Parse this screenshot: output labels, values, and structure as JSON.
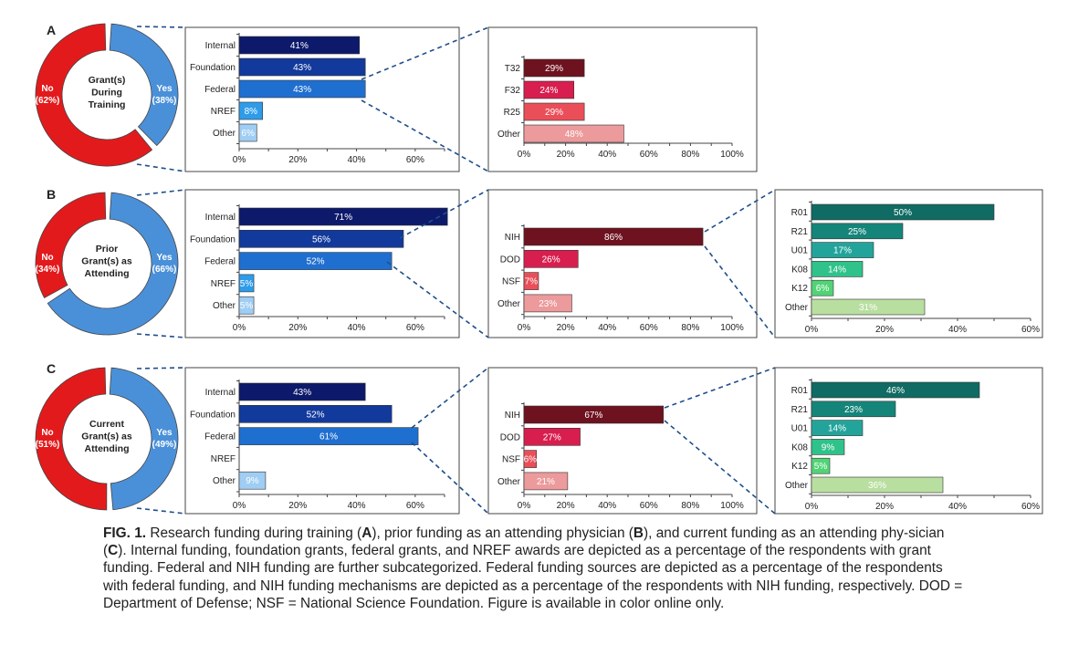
{
  "colors": {
    "donut_no": "#e31a1c",
    "donut_yes": "#4a90d9",
    "blue": [
      "#0d1a6b",
      "#12399c",
      "#1f6fd0",
      "#2f9cea",
      "#9fcdf3"
    ],
    "red": [
      "#6e1220",
      "#d81e4e",
      "#ea4f59",
      "#ec9a9b"
    ],
    "teal": [
      "#0f6b63",
      "#15857a",
      "#23a49b",
      "#2fc28a",
      "#52d376",
      "#b9dfa0"
    ],
    "dash": "#1f4e8c"
  },
  "chart_data": [
    {
      "panel": "A",
      "type": "pie",
      "title": "Grant(s) During Training",
      "title_lines": [
        "Grant(s)",
        "During",
        "Training"
      ],
      "slices": [
        {
          "name": "No",
          "label": "(62%)",
          "value": 62
        },
        {
          "name": "Yes",
          "label": "(38%)",
          "value": 38
        }
      ]
    },
    {
      "panel": "A",
      "type": "bar",
      "orientation": "horizontal",
      "categories": [
        "Internal",
        "Foundation",
        "Federal",
        "NREF",
        "Other"
      ],
      "values": [
        41,
        43,
        43,
        8,
        6
      ],
      "value_labels": [
        "41%",
        "43%",
        "43%",
        "8%",
        "6%"
      ],
      "xlim": [
        0,
        70
      ],
      "xticks": [
        "0%",
        "20%",
        "40%",
        "60%"
      ]
    },
    {
      "panel": "A",
      "type": "bar",
      "orientation": "horizontal",
      "categories": [
        "T32",
        "F32",
        "R25",
        "Other"
      ],
      "values": [
        29,
        24,
        29,
        48
      ],
      "value_labels": [
        "29%",
        "24%",
        "29%",
        "48%"
      ],
      "xlim": [
        0,
        100
      ],
      "xticks": [
        "0%",
        "20%",
        "40%",
        "60%",
        "80%",
        "100%"
      ]
    },
    {
      "panel": "B",
      "type": "pie",
      "title": "Prior Grant(s) as Attending",
      "title_lines": [
        "Prior",
        "Grant(s) as",
        "Attending"
      ],
      "slices": [
        {
          "name": "No",
          "label": "(34%)",
          "value": 34
        },
        {
          "name": "Yes",
          "label": "(66%)",
          "value": 66
        }
      ]
    },
    {
      "panel": "B",
      "type": "bar",
      "orientation": "horizontal",
      "categories": [
        "Internal",
        "Foundation",
        "Federal",
        "NREF",
        "Other"
      ],
      "values": [
        71,
        56,
        52,
        5,
        5
      ],
      "value_labels": [
        "71%",
        "56%",
        "52%",
        "5%",
        "5%"
      ],
      "xlim": [
        0,
        70
      ],
      "xticks": [
        "0%",
        "20%",
        "40%",
        "60%"
      ]
    },
    {
      "panel": "B",
      "type": "bar",
      "orientation": "horizontal",
      "categories": [
        "NIH",
        "DOD",
        "NSF",
        "Other"
      ],
      "values": [
        86,
        26,
        7,
        23
      ],
      "value_labels": [
        "86%",
        "26%",
        "7%",
        "23%"
      ],
      "xlim": [
        0,
        100
      ],
      "xticks": [
        "0%",
        "20%",
        "40%",
        "60%",
        "80%",
        "100%"
      ]
    },
    {
      "panel": "B",
      "type": "bar",
      "orientation": "horizontal",
      "categories": [
        "R01",
        "R21",
        "U01",
        "K08",
        "K12",
        "Other"
      ],
      "values": [
        50,
        25,
        17,
        14,
        6,
        31
      ],
      "value_labels": [
        "50%",
        "25%",
        "17%",
        "14%",
        "6%",
        "31%"
      ],
      "xlim": [
        0,
        60
      ],
      "xticks": [
        "0%",
        "20%",
        "40%",
        "60%"
      ]
    },
    {
      "panel": "C",
      "type": "pie",
      "title": "Current Grant(s) as Attending",
      "title_lines": [
        "Current",
        "Grant(s) as",
        "Attending"
      ],
      "slices": [
        {
          "name": "No",
          "label": "(51%)",
          "value": 51
        },
        {
          "name": "Yes",
          "label": "(49%)",
          "value": 49
        }
      ]
    },
    {
      "panel": "C",
      "type": "bar",
      "orientation": "horizontal",
      "categories": [
        "Internal",
        "Foundation",
        "Federal",
        "NREF",
        "Other"
      ],
      "values": [
        43,
        52,
        61,
        0,
        9
      ],
      "value_labels": [
        "43%",
        "52%",
        "61%",
        "",
        "9%"
      ],
      "xlim": [
        0,
        70
      ],
      "xticks": [
        "0%",
        "20%",
        "40%",
        "60%"
      ]
    },
    {
      "panel": "C",
      "type": "bar",
      "orientation": "horizontal",
      "categories": [
        "NIH",
        "DOD",
        "NSF",
        "Other"
      ],
      "values": [
        67,
        27,
        6,
        21
      ],
      "value_labels": [
        "67%",
        "27%",
        "6%",
        "21%"
      ],
      "xlim": [
        0,
        100
      ],
      "xticks": [
        "0%",
        "20%",
        "40%",
        "60%",
        "80%",
        "100%"
      ]
    },
    {
      "panel": "C",
      "type": "bar",
      "orientation": "horizontal",
      "categories": [
        "R01",
        "R21",
        "U01",
        "K08",
        "K12",
        "Other"
      ],
      "values": [
        46,
        23,
        14,
        9,
        5,
        36
      ],
      "value_labels": [
        "46%",
        "23%",
        "14%",
        "9%",
        "5%",
        "36%"
      ],
      "xlim": [
        0,
        60
      ],
      "xticks": [
        "0%",
        "20%",
        "40%",
        "60%"
      ]
    }
  ],
  "caption": {
    "fig_label": "FIG. 1.",
    "t1": " Research funding during training (",
    "a": "A",
    "t2": "), prior funding as an attending physician (",
    "b": "B",
    "t3": "), and current funding as an attending phy-sician (",
    "c": "C",
    "t4": "). Internal funding, foundation grants, federal grants, and NREF awards are depicted as a percentage of the respondents with grant funding. Federal and NIH funding are further subcategorized. Federal funding sources are depicted as a percentage of the respondents with federal funding, and NIH funding mechanisms are depicted as a percentage of the respondents with NIH funding, respectively. DOD = Department of Defense; NSF = National Science Foundation. Figure is available in color online only."
  }
}
